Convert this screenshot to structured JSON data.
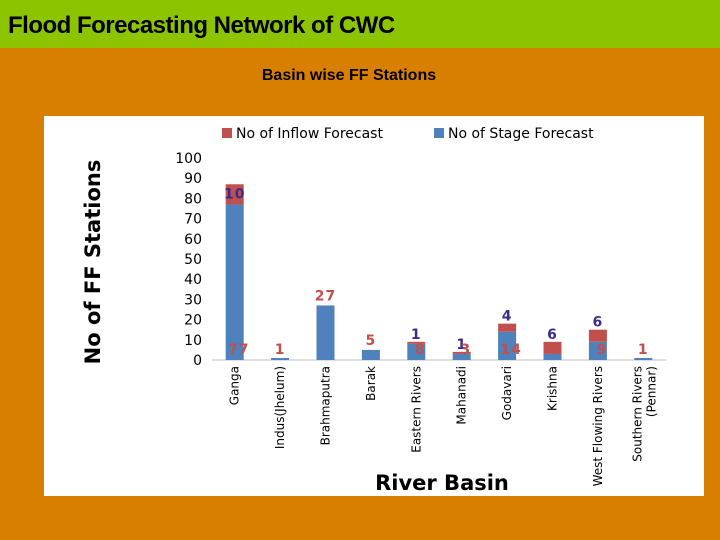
{
  "page": {
    "title": "Flood Forecasting Network of CWC",
    "subtitle": "Basin wise FF Stations"
  },
  "chart_data": {
    "type": "bar",
    "stacked": true,
    "xlabel": "River Basin",
    "ylabel": "No of FF Stations",
    "ylim": [
      0,
      100
    ],
    "yticks": [
      0,
      10,
      20,
      30,
      40,
      50,
      60,
      70,
      80,
      90,
      100
    ],
    "legend_position": "top",
    "categories": [
      "Ganga",
      "Indus(Jhelum)",
      "Brahmaputra",
      "Barak",
      "Eastern Rivers",
      "Mahanadi",
      "Godavari",
      "Krishna",
      "West Flowing Rivers",
      "Southern Rivers(Pennar)"
    ],
    "series": [
      {
        "name": "No of Stage Forecast",
        "color": "#4F81BD",
        "values": [
          77,
          1,
          27,
          5,
          8,
          3,
          14,
          3,
          9,
          1
        ]
      },
      {
        "name": "No of Inflow Forecast",
        "color": "#C0504D",
        "values": [
          10,
          0,
          0,
          0,
          1,
          1,
          4,
          6,
          6,
          0
        ]
      }
    ],
    "data_labels": [
      {
        "category_index": 0,
        "text": "10"
      },
      {
        "category_index": 0,
        "text": "77"
      },
      {
        "category_index": 1,
        "text": "1"
      },
      {
        "category_index": 2,
        "text": "27"
      },
      {
        "category_index": 3,
        "text": "5"
      },
      {
        "category_index": 4,
        "text": "1"
      },
      {
        "category_index": 4,
        "text": "8"
      },
      {
        "category_index": 5,
        "text": "1"
      },
      {
        "category_index": 5,
        "text": "3"
      },
      {
        "category_index": 6,
        "text": "4"
      },
      {
        "category_index": 6,
        "text": "14"
      },
      {
        "category_index": 7,
        "text": "6"
      },
      {
        "category_index": 7,
        "text": "3"
      },
      {
        "category_index": 8,
        "text": "6"
      },
      {
        "category_index": 8,
        "text": "9"
      },
      {
        "category_index": 9,
        "text": "1"
      }
    ]
  }
}
